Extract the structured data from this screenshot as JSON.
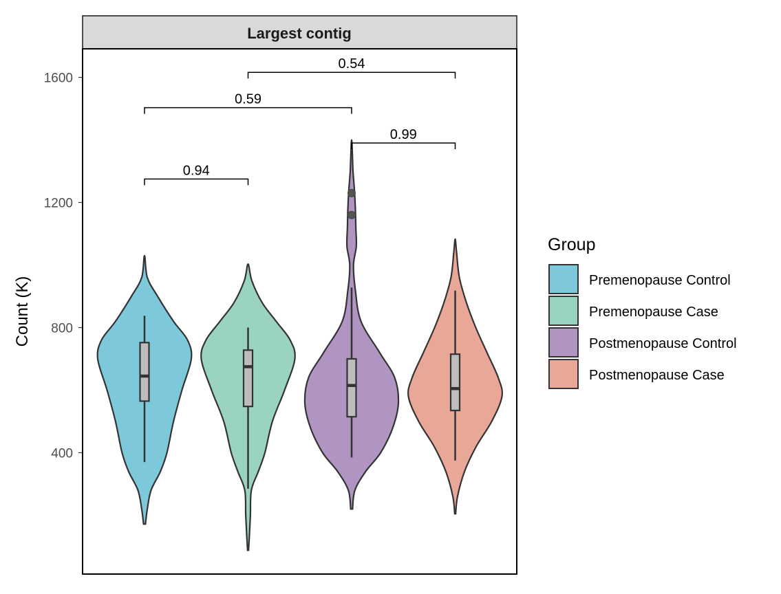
{
  "chart_data": {
    "type": "violin",
    "facet_title": "Largest contig",
    "ylabel": "Count (K)",
    "xlabel": "",
    "ylim": [
      80,
      1720
    ],
    "yticks": [
      400,
      800,
      1200,
      1600
    ],
    "yticks_labels": [
      "400",
      "800",
      "1200",
      "1600"
    ],
    "grid": false,
    "legend": {
      "title": "Group",
      "placement": "right",
      "entries": [
        "Premenopause Control",
        "Premenopause Case",
        "Postmenopause Control",
        "Postmenopause Case"
      ]
    },
    "groups": [
      {
        "name": "Premenopause Control",
        "color": "#7ec8dc",
        "violin_min": 172,
        "violin_max": 1030,
        "density_profile": [
          [
            172,
            0.02
          ],
          [
            220,
            0.06
          ],
          [
            280,
            0.14
          ],
          [
            340,
            0.34
          ],
          [
            400,
            0.48
          ],
          [
            500,
            0.62
          ],
          [
            600,
            0.8
          ],
          [
            700,
            1.0
          ],
          [
            760,
            0.92
          ],
          [
            820,
            0.62
          ],
          [
            900,
            0.28
          ],
          [
            960,
            0.06
          ],
          [
            1030,
            0.0
          ]
        ],
        "box": {
          "whisker_low": 370,
          "q1": 565,
          "median": 645,
          "q3": 752,
          "whisker_high": 838
        },
        "outliers": []
      },
      {
        "name": "Premenopause Case",
        "color": "#9bd3c2",
        "violin_min": 88,
        "violin_max": 1003,
        "density_profile": [
          [
            88,
            0.01
          ],
          [
            140,
            0.03
          ],
          [
            200,
            0.05
          ],
          [
            280,
            0.07
          ],
          [
            340,
            0.22
          ],
          [
            400,
            0.36
          ],
          [
            500,
            0.52
          ],
          [
            600,
            0.78
          ],
          [
            700,
            1.0
          ],
          [
            760,
            0.9
          ],
          [
            820,
            0.6
          ],
          [
            880,
            0.3
          ],
          [
            950,
            0.08
          ],
          [
            1003,
            0.0
          ]
        ],
        "box": {
          "whisker_low": 285,
          "q1": 548,
          "median": 675,
          "q3": 728,
          "whisker_high": 800
        },
        "outliers": []
      },
      {
        "name": "Postmenopause Control",
        "color": "#b094c2",
        "violin_min": 220,
        "violin_max": 1400,
        "density_profile": [
          [
            220,
            0.02
          ],
          [
            280,
            0.07
          ],
          [
            340,
            0.3
          ],
          [
            400,
            0.62
          ],
          [
            480,
            0.88
          ],
          [
            560,
            1.0
          ],
          [
            640,
            0.92
          ],
          [
            720,
            0.6
          ],
          [
            820,
            0.2
          ],
          [
            920,
            0.08
          ],
          [
            1000,
            0.04
          ],
          [
            1060,
            0.1
          ],
          [
            1120,
            0.09
          ],
          [
            1180,
            0.08
          ],
          [
            1240,
            0.06
          ],
          [
            1300,
            0.03
          ],
          [
            1400,
            0.0
          ]
        ],
        "box": {
          "whisker_low": 385,
          "q1": 515,
          "median": 615,
          "q3": 700,
          "whisker_high": 928
        },
        "outliers": [
          1160,
          1230
        ]
      },
      {
        "name": "Postmenopause Case",
        "color": "#e9a797",
        "violin_min": 205,
        "violin_max": 1083,
        "density_profile": [
          [
            205,
            0.01
          ],
          [
            260,
            0.05
          ],
          [
            340,
            0.2
          ],
          [
            420,
            0.45
          ],
          [
            500,
            0.78
          ],
          [
            580,
            1.0
          ],
          [
            640,
            0.92
          ],
          [
            720,
            0.68
          ],
          [
            800,
            0.44
          ],
          [
            880,
            0.24
          ],
          [
            960,
            0.09
          ],
          [
            1040,
            0.03
          ],
          [
            1083,
            0.0
          ]
        ],
        "box": {
          "whisker_low": 375,
          "q1": 535,
          "median": 605,
          "q3": 715,
          "whisker_high": 918
        },
        "outliers": []
      }
    ],
    "comparisons": [
      {
        "from": "Premenopause Control",
        "to": "Premenopause Case",
        "y": 1275,
        "p_value": "0.94"
      },
      {
        "from": "Premenopause Control",
        "to": "Postmenopause Control",
        "y": 1503,
        "p_value": "0.59"
      },
      {
        "from": "Postmenopause Control",
        "to": "Postmenopause Case",
        "y": 1390,
        "p_value": "0.99"
      },
      {
        "from": "Premenopause Case",
        "to": "Postmenopause Case",
        "y": 1616,
        "p_value": "0.54"
      }
    ]
  },
  "colors": {
    "outline": "#333333",
    "box_fill": "#bdbdbd",
    "strip_fill": "#d9d9d9"
  }
}
